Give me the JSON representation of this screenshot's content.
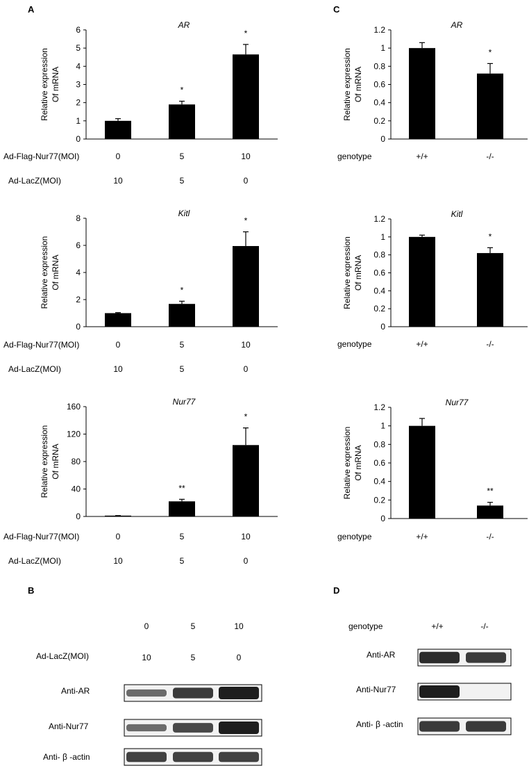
{
  "panel_labels": {
    "a": "A",
    "b": "B",
    "c": "C",
    "d": "D"
  },
  "axis_label": {
    "line1": "Relative expression",
    "line2": "Of mRNA"
  },
  "rows_a": {
    "flag": "Ad-Flag-Nur77(MOI)",
    "lacz": "Ad-LacZ(MOI)",
    "flag_values": [
      "0",
      "5",
      "10"
    ],
    "lacz_values": [
      "10",
      "5",
      "0"
    ]
  },
  "rows_c": {
    "genotype": "genotype",
    "values": [
      "+/+",
      "-/-"
    ]
  },
  "chart_data": [
    {
      "type": "bar",
      "title": "AR",
      "ylim": [
        0,
        6
      ],
      "ticks": [
        "0",
        "1",
        "2",
        "3",
        "4",
        "5",
        "6"
      ],
      "categories": [
        "0 / 10",
        "5 / 5",
        "10 / 0"
      ],
      "values": [
        1.0,
        1.9,
        4.65
      ],
      "errors": [
        0.12,
        0.18,
        0.55
      ],
      "marks": [
        "",
        "*",
        "*"
      ]
    },
    {
      "type": "bar",
      "title": "Kitl",
      "ylim": [
        0,
        8
      ],
      "ticks": [
        "0",
        "2",
        "4",
        "6",
        "8"
      ],
      "categories": [
        "0 / 10",
        "5 / 5",
        "10 / 0"
      ],
      "values": [
        1.0,
        1.68,
        5.95
      ],
      "errors": [
        0.04,
        0.2,
        1.05
      ],
      "marks": [
        "",
        "*",
        "*"
      ]
    },
    {
      "type": "bar",
      "title": "Nur77",
      "ylim": [
        0,
        160
      ],
      "ticks": [
        "0",
        "40",
        "80",
        "120",
        "160"
      ],
      "categories": [
        "0 / 10",
        "5 / 5",
        "10 / 0"
      ],
      "values": [
        1.0,
        22.0,
        104.0
      ],
      "errors": [
        0.3,
        3.0,
        25.0
      ],
      "marks": [
        "",
        "**",
        "*"
      ]
    },
    {
      "type": "bar",
      "title": "AR",
      "ylim": [
        0,
        1.2
      ],
      "ticks": [
        "0",
        "0.2",
        "0.4",
        "0.6",
        "0.8",
        "1",
        "1.2"
      ],
      "categories": [
        "+/+",
        "-/-"
      ],
      "values": [
        1.0,
        0.72
      ],
      "errors": [
        0.06,
        0.11
      ],
      "marks": [
        "",
        "*"
      ]
    },
    {
      "type": "bar",
      "title": "Kitl",
      "ylim": [
        0,
        1.2
      ],
      "ticks": [
        "0",
        "0.2",
        "0.4",
        "0.6",
        "0.8",
        "1",
        "1.2"
      ],
      "categories": [
        "+/+",
        "-/-"
      ],
      "values": [
        1.0,
        0.82
      ],
      "errors": [
        0.02,
        0.06
      ],
      "marks": [
        "",
        "*"
      ]
    },
    {
      "type": "bar",
      "title": "Nur77",
      "ylim": [
        0,
        1.2
      ],
      "ticks": [
        "0",
        "0.2",
        "0.4",
        "0.6",
        "0.8",
        "1",
        "1.2"
      ],
      "categories": [
        "+/+",
        "-/-"
      ],
      "values": [
        1.0,
        0.14
      ],
      "errors": [
        0.08,
        0.035
      ],
      "marks": [
        "",
        "**"
      ]
    }
  ],
  "blot_b": {
    "top_values": [
      "0",
      "5",
      "10"
    ],
    "lacz_label": "Ad-LacZ(MOI)",
    "lacz_values": [
      "10",
      "5",
      "0"
    ],
    "rows": [
      {
        "label": "Anti-AR",
        "intensity": [
          0.45,
          0.8,
          1.0
        ]
      },
      {
        "label": "Anti-Nur77",
        "intensity": [
          0.45,
          0.7,
          1.0
        ]
      },
      {
        "label": "Anti- β -actin",
        "intensity": [
          0.75,
          0.75,
          0.75
        ]
      }
    ]
  },
  "blot_d": {
    "genotype_label": "genotype",
    "values": [
      "+/+",
      "-/-"
    ],
    "rows": [
      {
        "label": "Anti-AR",
        "intensity": [
          0.9,
          0.8
        ]
      },
      {
        "label": "Anti-Nur77",
        "intensity": [
          1.0,
          0.0
        ]
      },
      {
        "label": "Anti- β -actin",
        "intensity": [
          0.8,
          0.8
        ]
      }
    ]
  }
}
